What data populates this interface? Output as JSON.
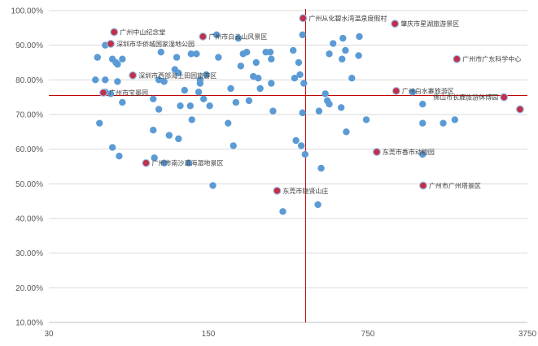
{
  "chart_data": {
    "type": "scatter",
    "title": "",
    "xlabel": "",
    "ylabel": "",
    "x_scale": "log",
    "xlim": [
      30,
      3750
    ],
    "ylim": [
      10,
      100
    ],
    "x_ticks": [
      30,
      150,
      750,
      3750
    ],
    "x_tick_labels": [
      "30",
      "150",
      "750",
      "3750"
    ],
    "y_ticks": [
      10,
      20,
      30,
      40,
      50,
      60,
      70,
      80,
      90,
      100
    ],
    "y_tick_labels": [
      "10.00%",
      "20.00%",
      "30.00%",
      "40.00%",
      "50.00%",
      "60.00%",
      "70.00%",
      "80.00%",
      "90.00%",
      "100.00%"
    ],
    "grid": "horizontal",
    "reference_lines": {
      "x": 400,
      "y": 75.5
    },
    "colors": {
      "point": "#5b9bd5",
      "highlight": "#c0304a",
      "reference": "#c00000",
      "grid": "#d9d9d9"
    },
    "labeled_points": [
      {
        "label": "广州中山纪念堂",
        "x": 58,
        "y": 93.8
      },
      {
        "label": "深圳市华侨城国家湿地公园",
        "x": 56,
        "y": 90.4
      },
      {
        "label": "广州市白云山风景区",
        "x": 142,
        "y": 92.5
      },
      {
        "label": "广州从化碧水湾温泉度假村",
        "x": 390,
        "y": 97.8
      },
      {
        "label": "肇庆市星湖旅游景区",
        "x": 985,
        "y": 96.2
      },
      {
        "label": "广州市广东科学中心",
        "x": 1840,
        "y": 86.0
      },
      {
        "label": "深圳市西部海上田园旅游区",
        "x": 70,
        "y": 81.3
      },
      {
        "label": "广州市宝墨园",
        "x": 52,
        "y": 76.3
      },
      {
        "label": "广州白水寨旅游区",
        "x": 998,
        "y": 76.8
      },
      {
        "label": "佛山市长鹿旅游休博园",
        "x": 2960,
        "y": 75.0
      },
      {
        "label": "广州市南沙滨海湿地景区",
        "x": 80,
        "y": 56.0
      },
      {
        "label": "东莞市香市动物园",
        "x": 820,
        "y": 59.2
      },
      {
        "label": "东莞市隐贤山庄",
        "x": 300,
        "y": 48.0
      },
      {
        "label": "广州市广州塔景区",
        "x": 1310,
        "y": 49.5
      },
      {
        "label": "",
        "x": 3480,
        "y": 71.5
      }
    ],
    "points": [
      {
        "x": 58,
        "y": 93.8
      },
      {
        "x": 56,
        "y": 90.4
      },
      {
        "x": 390,
        "y": 97.8
      },
      {
        "x": 985,
        "y": 96.2
      },
      {
        "x": 1840,
        "y": 86.0
      },
      {
        "x": 2960,
        "y": 75.0
      },
      {
        "x": 3480,
        "y": 71.5
      },
      {
        "x": 80,
        "y": 56.0
      },
      {
        "x": 300,
        "y": 48.0
      },
      {
        "x": 1310,
        "y": 49.5
      },
      {
        "x": 49,
        "y": 86.5
      },
      {
        "x": 53,
        "y": 90
      },
      {
        "x": 57,
        "y": 86
      },
      {
        "x": 60,
        "y": 84.5
      },
      {
        "x": 63,
        "y": 86
      },
      {
        "x": 59,
        "y": 85
      },
      {
        "x": 48,
        "y": 80
      },
      {
        "x": 53,
        "y": 80
      },
      {
        "x": 60,
        "y": 79.5
      },
      {
        "x": 53,
        "y": 76.5
      },
      {
        "x": 56,
        "y": 76
      },
      {
        "x": 63,
        "y": 73.5
      },
      {
        "x": 50,
        "y": 67.5
      },
      {
        "x": 57,
        "y": 60.5
      },
      {
        "x": 61,
        "y": 58
      },
      {
        "x": 86,
        "y": 74.5
      },
      {
        "x": 91,
        "y": 80
      },
      {
        "x": 96,
        "y": 79.5
      },
      {
        "x": 86,
        "y": 65.5
      },
      {
        "x": 91,
        "y": 71.5
      },
      {
        "x": 101,
        "y": 64
      },
      {
        "x": 87,
        "y": 57.5
      },
      {
        "x": 96,
        "y": 56
      },
      {
        "x": 107,
        "y": 83
      },
      {
        "x": 111,
        "y": 82
      },
      {
        "x": 113,
        "y": 72.5
      },
      {
        "x": 111,
        "y": 63
      },
      {
        "x": 118,
        "y": 77
      },
      {
        "x": 125,
        "y": 72.5
      },
      {
        "x": 127,
        "y": 68.5
      },
      {
        "x": 123,
        "y": 56
      },
      {
        "x": 126,
        "y": 87.5
      },
      {
        "x": 133,
        "y": 87.5
      },
      {
        "x": 109,
        "y": 86.5
      },
      {
        "x": 93,
        "y": 88
      },
      {
        "x": 138,
        "y": 80
      },
      {
        "x": 138,
        "y": 79
      },
      {
        "x": 136,
        "y": 76.5
      },
      {
        "x": 143,
        "y": 74.5
      },
      {
        "x": 147,
        "y": 81.5
      },
      {
        "x": 152,
        "y": 72.5
      },
      {
        "x": 157,
        "y": 49.5
      },
      {
        "x": 163,
        "y": 93
      },
      {
        "x": 166,
        "y": 86.5
      },
      {
        "x": 188,
        "y": 77.5
      },
      {
        "x": 183,
        "y": 67.5
      },
      {
        "x": 193,
        "y": 61
      },
      {
        "x": 198,
        "y": 73.5
      },
      {
        "x": 203,
        "y": 92
      },
      {
        "x": 208,
        "y": 84
      },
      {
        "x": 213,
        "y": 87.5
      },
      {
        "x": 221,
        "y": 88
      },
      {
        "x": 226,
        "y": 74
      },
      {
        "x": 236,
        "y": 81
      },
      {
        "x": 243,
        "y": 85
      },
      {
        "x": 248,
        "y": 80.5
      },
      {
        "x": 253,
        "y": 77.5
      },
      {
        "x": 268,
        "y": 88
      },
      {
        "x": 280,
        "y": 88
      },
      {
        "x": 283,
        "y": 79
      },
      {
        "x": 288,
        "y": 71
      },
      {
        "x": 283,
        "y": 86
      },
      {
        "x": 318,
        "y": 42
      },
      {
        "x": 353,
        "y": 88.5
      },
      {
        "x": 358,
        "y": 80.5
      },
      {
        "x": 363,
        "y": 62.5
      },
      {
        "x": 373,
        "y": 85
      },
      {
        "x": 378,
        "y": 81.5
      },
      {
        "x": 388,
        "y": 93
      },
      {
        "x": 393,
        "y": 79
      },
      {
        "x": 388,
        "y": 70.5
      },
      {
        "x": 383,
        "y": 61
      },
      {
        "x": 398,
        "y": 58.5
      },
      {
        "x": 458,
        "y": 71
      },
      {
        "x": 468,
        "y": 54.5
      },
      {
        "x": 488,
        "y": 76
      },
      {
        "x": 453,
        "y": 44
      },
      {
        "x": 508,
        "y": 87.5
      },
      {
        "x": 528,
        "y": 90.5
      },
      {
        "x": 498,
        "y": 74
      },
      {
        "x": 508,
        "y": 73
      },
      {
        "x": 583,
        "y": 92
      },
      {
        "x": 578,
        "y": 86
      },
      {
        "x": 598,
        "y": 88.5
      },
      {
        "x": 573,
        "y": 72
      },
      {
        "x": 603,
        "y": 65
      },
      {
        "x": 638,
        "y": 80.5
      },
      {
        "x": 688,
        "y": 92.5
      },
      {
        "x": 683,
        "y": 87
      },
      {
        "x": 738,
        "y": 68.5
      },
      {
        "x": 1178,
        "y": 76.5
      },
      {
        "x": 1303,
        "y": 73
      },
      {
        "x": 1303,
        "y": 67.5
      },
      {
        "x": 1303,
        "y": 58.5
      },
      {
        "x": 1603,
        "y": 67.5
      },
      {
        "x": 1803,
        "y": 68.5
      },
      {
        "x": 820,
        "y": 59.2
      },
      {
        "x": 998,
        "y": 76.8
      },
      {
        "x": 142,
        "y": 92.5
      },
      {
        "x": 70,
        "y": 81.3
      },
      {
        "x": 52,
        "y": 76.3
      }
    ]
  }
}
